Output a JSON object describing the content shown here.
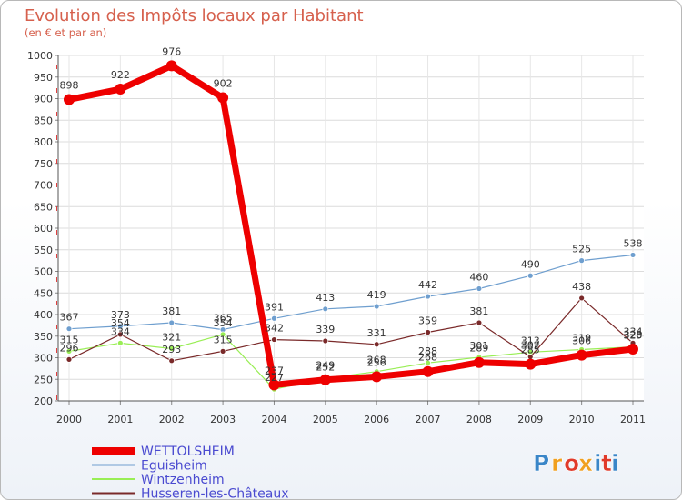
{
  "chart_data": {
    "type": "line",
    "title": "Evolution des Impôts locaux par Habitant",
    "subtitle": "(en € et par an)",
    "xlabel": "",
    "ylabel": "",
    "ylim": [
      200,
      1000
    ],
    "yticks": [
      200,
      250,
      300,
      350,
      400,
      450,
      500,
      550,
      600,
      650,
      700,
      750,
      800,
      850,
      900,
      950,
      1000
    ],
    "x": [
      "2000",
      "2001",
      "2002",
      "2003",
      "2004",
      "2005",
      "2006",
      "2007",
      "2008",
      "2009",
      "2010",
      "2011"
    ],
    "grid": true,
    "legend_position": "bottom-left",
    "series": [
      {
        "name": "WETTOLSHEIM",
        "color": "#ee0000",
        "values": [
          898,
          922,
          976,
          902,
          237,
          249,
          256,
          268,
          289,
          285,
          306,
          320
        ],
        "labels": [
          "898",
          "922",
          "976",
          "902",
          "237",
          "249",
          "256",
          "268",
          "289",
          "285",
          "306",
          "320"
        ]
      },
      {
        "name": "Eguisheim",
        "color": "#6f9fcf",
        "values": [
          367,
          373,
          381,
          365,
          391,
          413,
          419,
          442,
          460,
          490,
          525,
          538
        ],
        "labels": [
          "367",
          "373",
          "381",
          "365",
          "391",
          "413",
          "419",
          "442",
          "460",
          "490",
          "525",
          "538"
        ]
      },
      {
        "name": "Wintzenheim",
        "color": "#99ee55",
        "values": [
          315,
          334,
          321,
          354,
          227,
          252,
          268,
          288,
          301,
          313,
          319,
          325
        ],
        "labels": [
          "315",
          "334",
          "321",
          "354",
          "227",
          "252",
          "268",
          "288",
          "301",
          "313",
          "319",
          "325"
        ]
      },
      {
        "name": "Husseren-les-Châteaux",
        "color": "#7a2a2a",
        "values": [
          296,
          354,
          293,
          315,
          342,
          339,
          331,
          359,
          381,
          302,
          438,
          334
        ],
        "labels": [
          "296",
          "354",
          "293",
          "315",
          "342",
          "339",
          "331",
          "359",
          "381",
          "302",
          "438",
          "334"
        ]
      }
    ]
  },
  "branding": {
    "logo_text": "Proxiti"
  }
}
